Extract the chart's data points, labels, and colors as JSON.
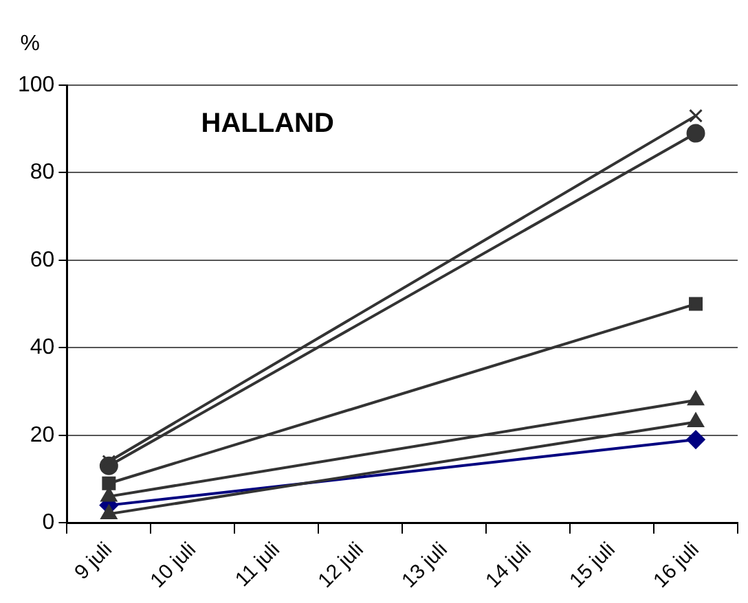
{
  "chart_data": {
    "type": "line",
    "title": "HALLAND",
    "ylabel": "%",
    "categories": [
      "9 juli",
      "10 juli",
      "11 juli",
      "12 juli",
      "13 juli",
      "14 juli",
      "15 juli",
      "16 juli"
    ],
    "ylim": [
      0,
      100
    ],
    "yticks": [
      0,
      20,
      40,
      60,
      80,
      100
    ],
    "grid": "y",
    "legend": false,
    "line_style": "solid",
    "series": [
      {
        "values": [
          14,
          null,
          null,
          null,
          null,
          null,
          null,
          93
        ],
        "color": "#333333",
        "marker": "cross"
      },
      {
        "values": [
          13,
          null,
          null,
          null,
          null,
          null,
          null,
          89
        ],
        "color": "#333333",
        "marker": "circle"
      },
      {
        "values": [
          9,
          null,
          null,
          null,
          null,
          null,
          null,
          50
        ],
        "color": "#333333",
        "marker": "square"
      },
      {
        "values": [
          6,
          null,
          null,
          null,
          null,
          null,
          null,
          28
        ],
        "color": "#333333",
        "marker": "triangle"
      },
      {
        "values": [
          2,
          null,
          null,
          null,
          null,
          null,
          null,
          23
        ],
        "color": "#333333",
        "marker": "triangle"
      },
      {
        "values": [
          4,
          null,
          null,
          null,
          null,
          null,
          null,
          19
        ],
        "color": "#000080",
        "marker": "diamond"
      }
    ]
  }
}
